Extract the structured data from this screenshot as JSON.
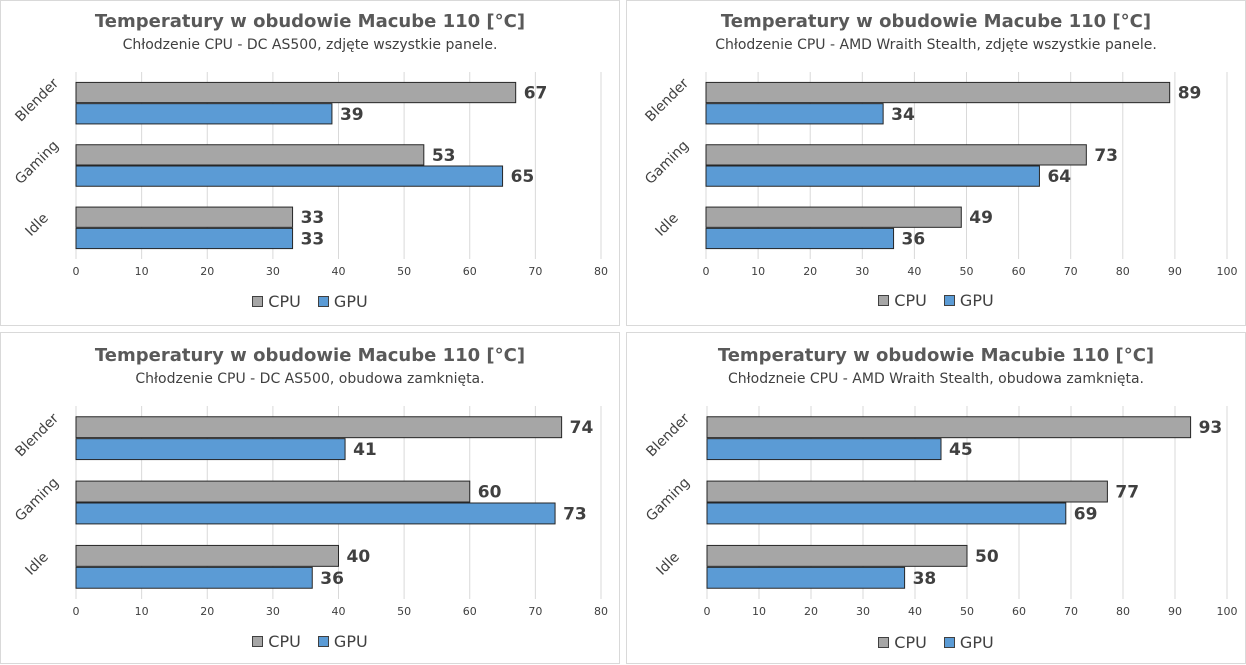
{
  "colors": {
    "cpu": "#a6a6a6",
    "gpu": "#5b9bd5",
    "grid": "#d9d9d9",
    "barStroke": "#262626",
    "text": "#404040",
    "label": "#404040"
  },
  "chart_data": [
    {
      "type": "bar",
      "orientation": "horizontal",
      "title": "Temperatury w obudowie Macube 110 [°C]",
      "subtitle": "Chłodzenie CPU - DC AS500, zdjęte wszystkie panele.",
      "categories": [
        "Blender",
        "Gaming",
        "Idle"
      ],
      "series": [
        {
          "name": "CPU",
          "values": [
            67,
            53,
            33
          ]
        },
        {
          "name": "GPU",
          "values": [
            39,
            65,
            33
          ]
        }
      ],
      "xlim": [
        0,
        80
      ],
      "xticks": [
        0,
        10,
        20,
        30,
        40,
        50,
        60,
        70,
        80
      ],
      "grid": true,
      "legend": "bottom"
    },
    {
      "type": "bar",
      "orientation": "horizontal",
      "title": "Temperatury w obudowie Macube 110 [°C]",
      "subtitle": "Chłodzenie CPU - AMD Wraith Stealth, zdjęte wszystkie panele.",
      "categories": [
        "Blender",
        "Gaming",
        "Idle"
      ],
      "series": [
        {
          "name": "CPU",
          "values": [
            89,
            73,
            49
          ]
        },
        {
          "name": "GPU",
          "values": [
            34,
            64,
            36
          ]
        }
      ],
      "xlim": [
        0,
        100
      ],
      "xticks": [
        0,
        10,
        20,
        30,
        40,
        50,
        60,
        70,
        80,
        90,
        100
      ],
      "grid": true,
      "legend": "bottom"
    },
    {
      "type": "bar",
      "orientation": "horizontal",
      "title": "Temperatury w obudowie Macube 110 [°C]",
      "subtitle": "Chłodzenie CPU - DC AS500, obudowa zamknięta.",
      "categories": [
        "Blender",
        "Gaming",
        "Idle"
      ],
      "series": [
        {
          "name": "CPU",
          "values": [
            74,
            60,
            40
          ]
        },
        {
          "name": "GPU",
          "values": [
            41,
            73,
            36
          ]
        }
      ],
      "xlim": [
        0,
        80
      ],
      "xticks": [
        0,
        10,
        20,
        30,
        40,
        50,
        60,
        70,
        80
      ],
      "grid": true,
      "legend": "bottom"
    },
    {
      "type": "bar",
      "orientation": "horizontal",
      "title": "Temperatury w obudowie Macubie 110 [°C]",
      "subtitle": "Chłodzneie CPU - AMD Wraith Stealth, obudowa zamknięta.",
      "categories": [
        "Blender",
        "Gaming",
        "Idle"
      ],
      "series": [
        {
          "name": "CPU",
          "values": [
            93,
            77,
            50
          ]
        },
        {
          "name": "GPU",
          "values": [
            45,
            69,
            38
          ]
        }
      ],
      "xlim": [
        0,
        100
      ],
      "xticks": [
        0,
        10,
        20,
        30,
        40,
        50,
        60,
        70,
        80,
        90,
        100
      ],
      "grid": true,
      "legend": "bottom"
    }
  ]
}
